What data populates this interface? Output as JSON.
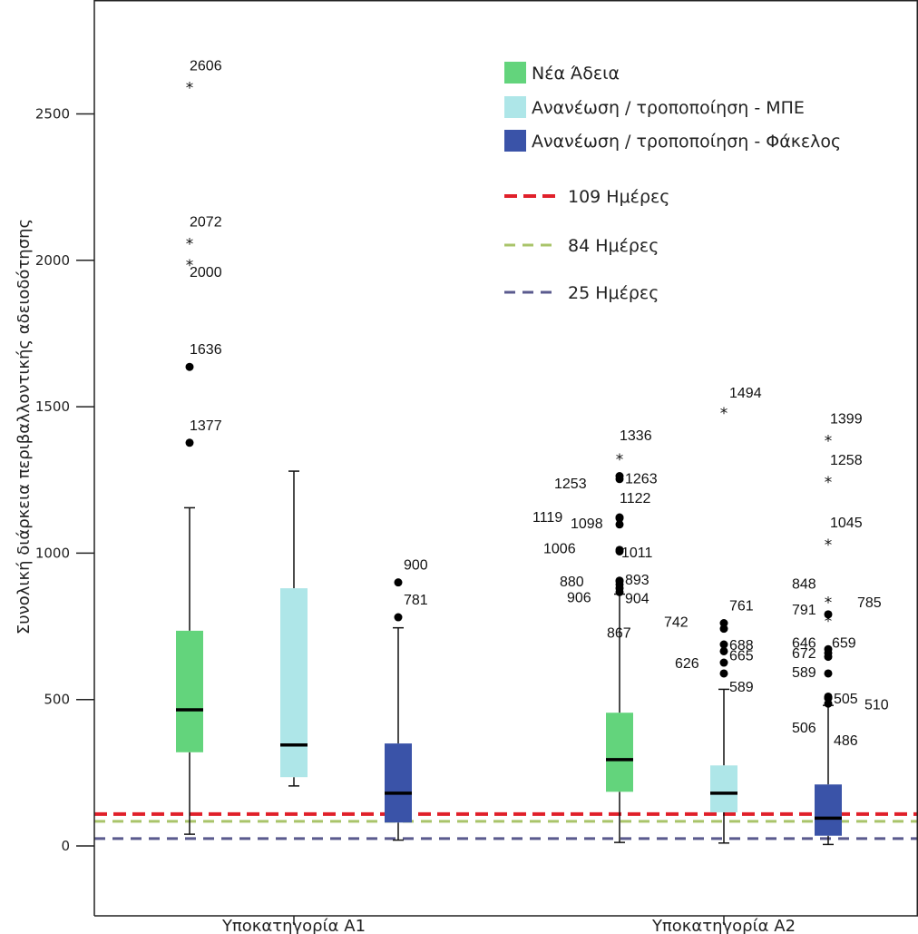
{
  "chart_data": {
    "type": "boxplot",
    "ylabel": "Συνολική διάρκεια περιβαλλοντικής αδειοδότησης",
    "ylim": [
      -150,
      2850
    ],
    "yticks": [
      0,
      500,
      1000,
      1500,
      2000,
      2500
    ],
    "categories": [
      "Υποκατηγορία Α1",
      "Υποκατηγορία Α2"
    ],
    "series": [
      {
        "name": "Νέα Άδεια",
        "color": "#63d47c"
      },
      {
        "name": "Ανανέωση / τροποποίηση - ΜΠΕ",
        "color": "#aee6e8"
      },
      {
        "name": "Ανανέωση / τροποποίηση - Φάκελος",
        "color": "#3a53a8"
      }
    ],
    "boxes": [
      {
        "category": 0,
        "series": 0,
        "min": 40,
        "q1": 320,
        "median": 465,
        "q3": 735,
        "max": 1155,
        "outliers": [
          {
            "label": "2606",
            "value": 2606,
            "kind": "extreme"
          },
          {
            "label": "2072",
            "value": 2072,
            "kind": "extreme"
          },
          {
            "label": "2000",
            "value": 2000,
            "kind": "extreme"
          },
          {
            "label": "1636",
            "value": 1636,
            "kind": "outlier"
          },
          {
            "label": "1377",
            "value": 1377,
            "kind": "outlier"
          }
        ]
      },
      {
        "category": 0,
        "series": 1,
        "min": 205,
        "q1": 235,
        "median": 345,
        "q3": 880,
        "max": 1280,
        "outliers": []
      },
      {
        "category": 0,
        "series": 2,
        "min": 20,
        "q1": 80,
        "median": 180,
        "q3": 350,
        "max": 745,
        "outliers": [
          {
            "label": "900",
            "value": 900,
            "kind": "outlier"
          },
          {
            "label": "781",
            "value": 781,
            "kind": "outlier"
          }
        ]
      },
      {
        "category": 1,
        "series": 0,
        "min": 12,
        "q1": 185,
        "median": 295,
        "q3": 455,
        "max": 860,
        "outliers": [
          {
            "label": "1336",
            "value": 1336,
            "kind": "extreme"
          },
          {
            "label": "1263",
            "value": 1263,
            "kind": "outlier"
          },
          {
            "label": "1253",
            "value": 1253,
            "kind": "outlier"
          },
          {
            "label": "1122",
            "value": 1122,
            "kind": "outlier"
          },
          {
            "label": "1119",
            "value": 1119,
            "kind": "outlier"
          },
          {
            "label": "1098",
            "value": 1098,
            "kind": "outlier"
          },
          {
            "label": "1011",
            "value": 1011,
            "kind": "outlier"
          },
          {
            "label": "1006",
            "value": 1006,
            "kind": "outlier"
          },
          {
            "label": "893",
            "value": 893,
            "kind": "outlier"
          },
          {
            "label": "880",
            "value": 880,
            "kind": "outlier"
          },
          {
            "label": "906",
            "value": 906,
            "kind": "outlier"
          },
          {
            "label": "904",
            "value": 904,
            "kind": "outlier"
          },
          {
            "label": "867",
            "value": 867,
            "kind": "outlier"
          }
        ]
      },
      {
        "category": 1,
        "series": 1,
        "min": 10,
        "q1": 115,
        "median": 180,
        "q3": 275,
        "max": 535,
        "outliers": [
          {
            "label": "1494",
            "value": 1494,
            "kind": "extreme"
          },
          {
            "label": "761",
            "value": 761,
            "kind": "outlier"
          },
          {
            "label": "742",
            "value": 742,
            "kind": "outlier"
          },
          {
            "label": "688",
            "value": 688,
            "kind": "outlier"
          },
          {
            "label": "626",
            "value": 626,
            "kind": "outlier"
          },
          {
            "label": "665",
            "value": 665,
            "kind": "outlier"
          },
          {
            "label": "589",
            "value": 589,
            "kind": "outlier"
          }
        ]
      },
      {
        "category": 1,
        "series": 2,
        "min": 5,
        "q1": 35,
        "median": 95,
        "q3": 210,
        "max": 480,
        "outliers": [
          {
            "label": "1399",
            "value": 1399,
            "kind": "extreme"
          },
          {
            "label": "1258",
            "value": 1258,
            "kind": "extreme"
          },
          {
            "label": "1045",
            "value": 1045,
            "kind": "extreme"
          },
          {
            "label": "848",
            "value": 848,
            "kind": "extreme"
          },
          {
            "label": "785",
            "value": 785,
            "kind": "extreme"
          },
          {
            "label": "791",
            "value": 791,
            "kind": "outlier"
          },
          {
            "label": "659",
            "value": 659,
            "kind": "outlier"
          },
          {
            "label": "646",
            "value": 646,
            "kind": "outlier"
          },
          {
            "label": "672",
            "value": 672,
            "kind": "outlier"
          },
          {
            "label": "505",
            "value": 505,
            "kind": "outlier"
          },
          {
            "label": "589",
            "value": 589,
            "kind": "outlier"
          },
          {
            "label": "510",
            "value": 510,
            "kind": "outlier"
          },
          {
            "label": "506",
            "value": 506,
            "kind": "outlier"
          },
          {
            "label": "486",
            "value": 486,
            "kind": "outlier"
          }
        ]
      }
    ],
    "reference_lines": [
      {
        "label": "109 Ημέρες",
        "value": 109,
        "color": "#e0202a"
      },
      {
        "label": "84 Ημέρες",
        "value": 84,
        "color": "#a9c46a"
      },
      {
        "label": "25 Ημέρες",
        "value": 25,
        "color": "#5a5a8e"
      }
    ],
    "legend_position": "top-right",
    "grid": false
  }
}
